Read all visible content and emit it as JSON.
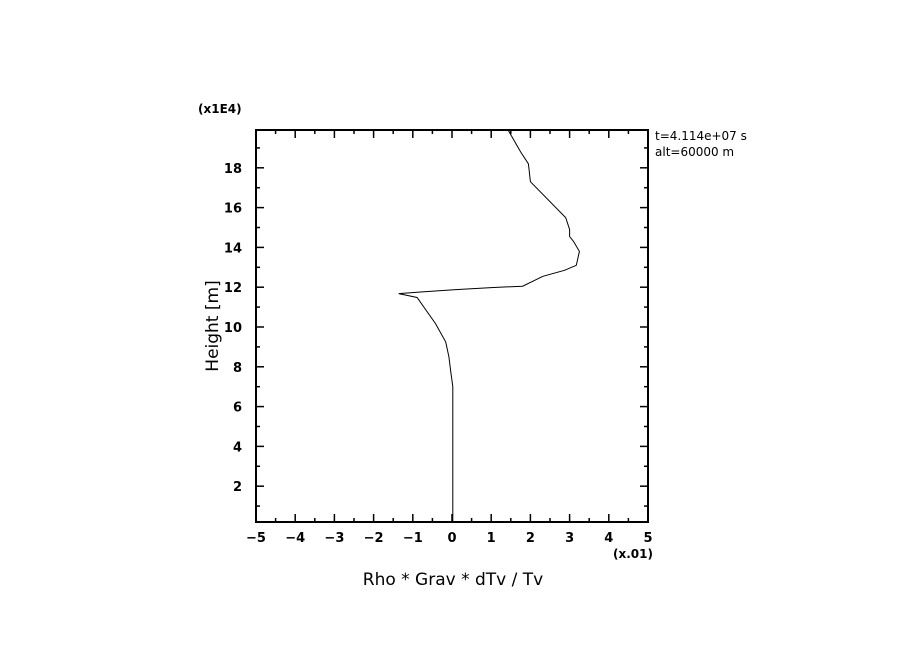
{
  "chart_data": {
    "type": "line",
    "xlabel": "Rho * Grav * dTv / Tv",
    "ylabel": "Height [m]",
    "x_multiplier": "(x.01)",
    "y_multiplier": "(x1E4)",
    "xlim": [
      -5,
      5
    ],
    "ylim": [
      0.2,
      19.9
    ],
    "xticks": [
      -5,
      -4,
      -3,
      -2,
      -1,
      0,
      1,
      2,
      3,
      4,
      5
    ],
    "yticks": [
      2,
      4,
      6,
      8,
      10,
      12,
      14,
      16,
      18
    ],
    "grid": false,
    "annotations": [
      "t=4.114e+07 s",
      "alt=60000 m"
    ],
    "line_color": "#000000",
    "series": [
      {
        "x": [
          0.02,
          0.02,
          -0.03,
          -0.08,
          -0.16,
          -0.42,
          -0.89,
          -1.36,
          -0.8,
          0.1,
          1.0,
          1.8,
          2.32,
          2.87,
          3.17,
          3.25,
          3.1,
          3.0,
          3.0,
          2.9,
          2.0,
          1.97,
          1.95,
          1.75,
          1.43
        ],
        "y": [
          0.2,
          7.0,
          7.74,
          8.5,
          9.25,
          10.17,
          11.48,
          11.68,
          11.76,
          11.88,
          11.98,
          12.05,
          12.55,
          12.85,
          13.1,
          13.8,
          14.3,
          14.55,
          14.9,
          15.5,
          17.3,
          17.85,
          18.2,
          18.8,
          19.9
        ]
      }
    ]
  }
}
